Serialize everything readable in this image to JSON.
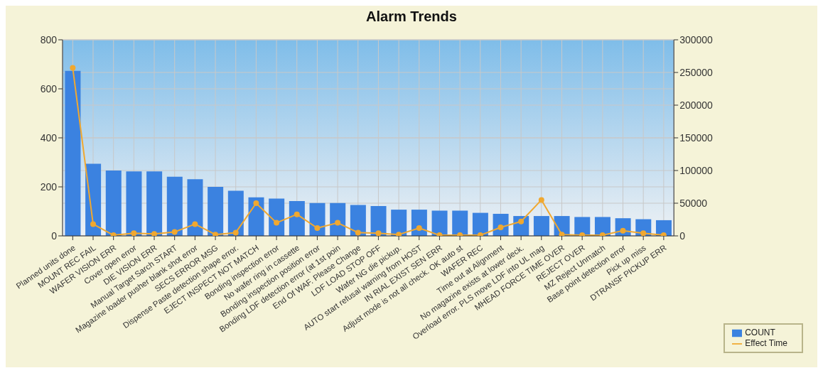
{
  "chart_data": {
    "type": "bar",
    "title": "Alarm Trends",
    "categories": [
      "Planned units done",
      "MOUNT REC FAIL",
      "WAFER VISION ERR",
      "Cover open error",
      "DIE VISION ERR",
      "Manual Target Sarch START",
      "Magazine loader pusher blank shot error",
      "SECS ERROR MSG",
      "Dispense Paste detection shape error.",
      "EJECT INSPECT NOT MATCH",
      "Bonding inspection error",
      "No wafer ring in cassette",
      "Bonding inspection position error",
      "Bonding LDF detection error (at 1st poin",
      "End Of WAF. Please Change",
      "LDF LOAD STOP OFF",
      "Wafer NG die pickup.",
      "AUTO start refusal warning from HOST",
      "IN RIAL EXIST SEN ERR",
      "Adjust mode is not all check. OK auto st",
      "WAFER REC",
      "Time out at Alignment",
      "No magazine exists at lower deck.",
      "Overload error. PLS move LDF into UL mag",
      "MHEAD FORCE TIME OVER",
      "REJECT OVER",
      "MZ Reject Unmatch",
      "Base point detection error",
      "Pick up miss",
      "DTRANSF PICKUP ERR"
    ],
    "series": [
      {
        "name": "COUNT",
        "color": "#3b82e0",
        "values": [
          673,
          294,
          267,
          263,
          263,
          241,
          231,
          200,
          184,
          157,
          152,
          142,
          134,
          134,
          126,
          122,
          107,
          107,
          103,
          103,
          94,
          90,
          81,
          81,
          81,
          77,
          77,
          72,
          68,
          64
        ]
      },
      {
        "name": "Effect Time",
        "type": "line",
        "axis": "y2",
        "color": "#f0a830",
        "marker": "circle",
        "values": [
          257000,
          18000,
          1000,
          4000,
          3000,
          6000,
          18000,
          2000,
          5000,
          50000,
          20000,
          33000,
          12000,
          20000,
          5000,
          4000,
          2000,
          12000,
          1000,
          1000,
          1000,
          13000,
          22000,
          55000,
          2000,
          1000,
          1000,
          8000,
          4000,
          1000
        ]
      }
    ],
    "ylim": [
      0,
      800
    ],
    "yticks": [
      0,
      200,
      400,
      600,
      800
    ],
    "y2lim": [
      0,
      300000
    ],
    "y2ticks": [
      0,
      50000,
      100000,
      150000,
      200000,
      250000,
      300000
    ],
    "grid": true,
    "legend": "bottom right"
  }
}
